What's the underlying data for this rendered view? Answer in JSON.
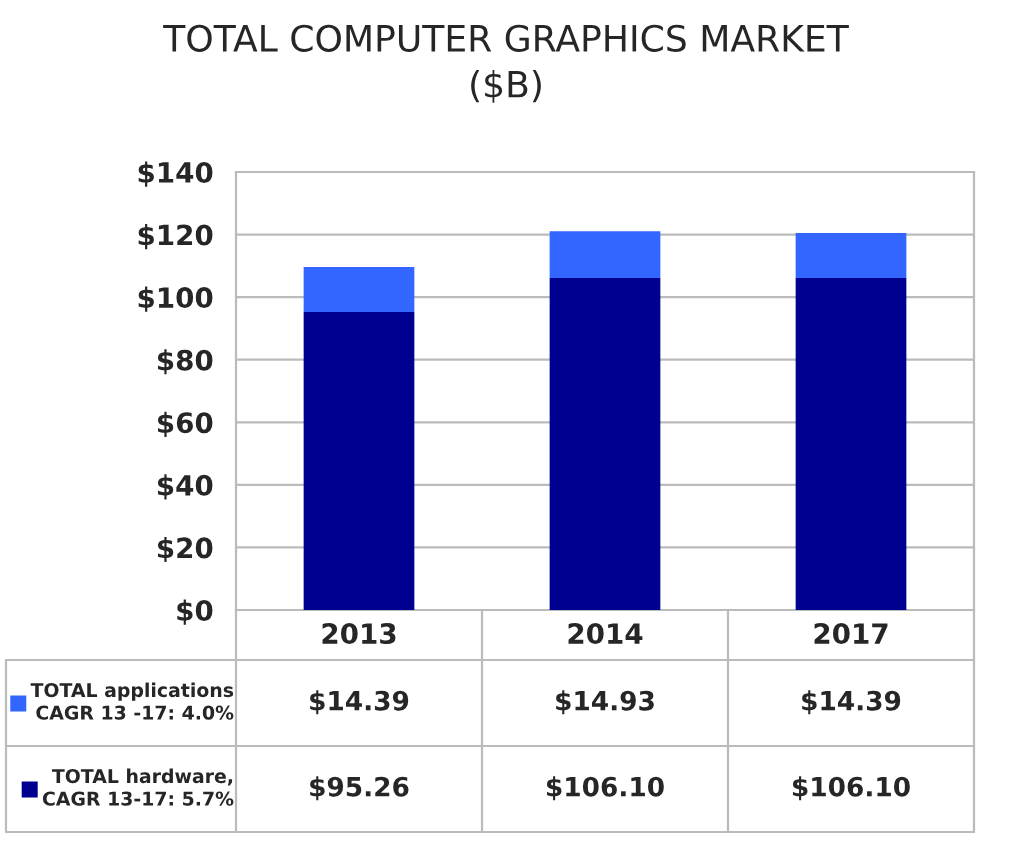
{
  "chart_data": {
    "type": "bar",
    "title": "TOTAL COMPUTER GRAPHICS MARKET\n($B)",
    "categories": [
      "2013",
      "2014",
      "2017"
    ],
    "stacked": true,
    "series": [
      {
        "name": "TOTAL hardware,\nCAGR 13-17: 5.7%",
        "color": "#000090",
        "values": [
          95.26,
          106.1,
          106.1
        ],
        "value_labels": [
          "$95.26",
          "$106.10",
          "$106.10"
        ]
      },
      {
        "name": "TOTAL applications\nCAGR 13 -17: 4.0%",
        "color": "#3366ff",
        "values": [
          14.39,
          14.93,
          14.39
        ],
        "value_labels": [
          "$14.39",
          "$14.93",
          "$14.39"
        ]
      }
    ],
    "ylim": [
      0,
      140
    ],
    "yticks": [
      {
        "value": 0,
        "label": "$0"
      },
      {
        "value": 20,
        "label": "$20"
      },
      {
        "value": 40,
        "label": "$40"
      },
      {
        "value": 60,
        "label": "$60"
      },
      {
        "value": 80,
        "label": "$80"
      },
      {
        "value": 100,
        "label": "$100"
      },
      {
        "value": 120,
        "label": "$120"
      },
      {
        "value": 140,
        "label": "$140"
      }
    ],
    "grid": "y",
    "legend": "bottom left"
  }
}
